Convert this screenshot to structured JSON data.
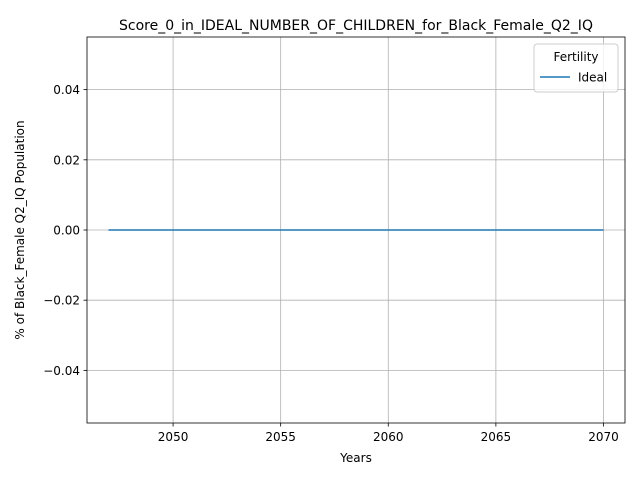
{
  "chart_data": {
    "type": "line",
    "title": "Score_0_in_IDEAL_NUMBER_OF_CHILDREN_for_Black_Female_Q2_IQ",
    "xlabel": "Years",
    "ylabel": "% of Black_Female Q2_IQ Population",
    "xlim": [
      2046,
      2071
    ],
    "ylim": [
      -0.055,
      0.055
    ],
    "xticks": [
      2050,
      2055,
      2060,
      2065,
      2070
    ],
    "yticks": [
      -0.04,
      -0.02,
      0.0,
      0.02,
      0.04
    ],
    "ytick_labels": [
      "−0.04",
      "−0.02",
      "0.00",
      "0.02",
      "0.04"
    ],
    "grid": true,
    "legend": {
      "title": "Fertility",
      "placement": "top-right"
    },
    "series": [
      {
        "name": "Ideal",
        "color": "#1f77b4",
        "x": [
          2047,
          2048,
          2049,
          2050,
          2051,
          2052,
          2053,
          2054,
          2055,
          2056,
          2057,
          2058,
          2059,
          2060,
          2061,
          2062,
          2063,
          2064,
          2065,
          2066,
          2067,
          2068,
          2069,
          2070
        ],
        "y": [
          0,
          0,
          0,
          0,
          0,
          0,
          0,
          0,
          0,
          0,
          0,
          0,
          0,
          0,
          0,
          0,
          0,
          0,
          0,
          0,
          0,
          0,
          0,
          0
        ]
      }
    ]
  }
}
